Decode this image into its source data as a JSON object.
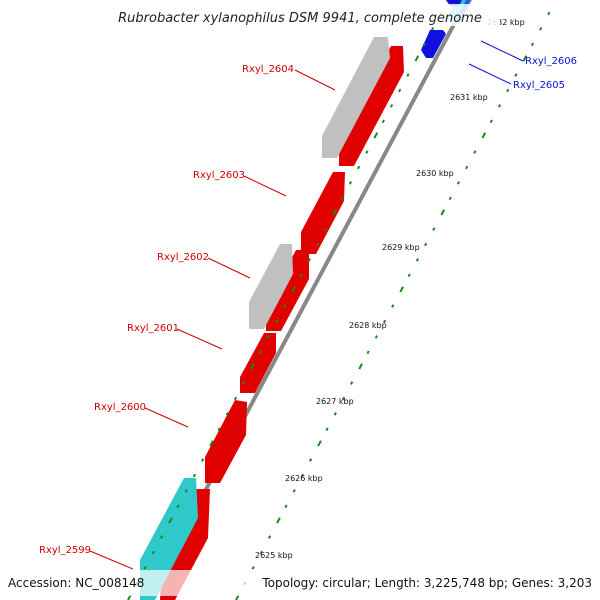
{
  "title": "Rubrobacter xylanophilus DSM 9941, complete genome",
  "accession": "Accession: NC_008148",
  "topology": "Topology: circular; Length: 3,225,748 bp; Genes: 3,203",
  "colors": {
    "forward_gene": "#e00000",
    "reverse_gene": "#1010e0",
    "pseudo_gene": "#c0c0c0",
    "rna_gene": "#30c8c8",
    "backbone": "#888888",
    "tick": "#1a8a1a",
    "label_forward": "#d00000",
    "label_reverse": "#1010d0"
  },
  "scale": [
    {
      "label": "2625 kbp"
    },
    {
      "label": "2626 kbp"
    },
    {
      "label": "2627 kbp"
    },
    {
      "label": "2628 kbp"
    },
    {
      "label": "2629 kbp"
    },
    {
      "label": "2630 kbp"
    },
    {
      "label": "2631 kbp"
    },
    {
      "label": "2632 kbp"
    }
  ],
  "genes": [
    {
      "name": "Rxyl_2599",
      "strand": "forward"
    },
    {
      "name": "Rxyl_2600",
      "strand": "forward"
    },
    {
      "name": "Rxyl_2601",
      "strand": "forward"
    },
    {
      "name": "Rxyl_2602",
      "strand": "forward"
    },
    {
      "name": "Rxyl_2603",
      "strand": "forward"
    },
    {
      "name": "Rxyl_2604",
      "strand": "forward"
    },
    {
      "name": "Rxyl_2605",
      "strand": "reverse"
    },
    {
      "name": "Rxyl_2606",
      "strand": "reverse"
    }
  ]
}
